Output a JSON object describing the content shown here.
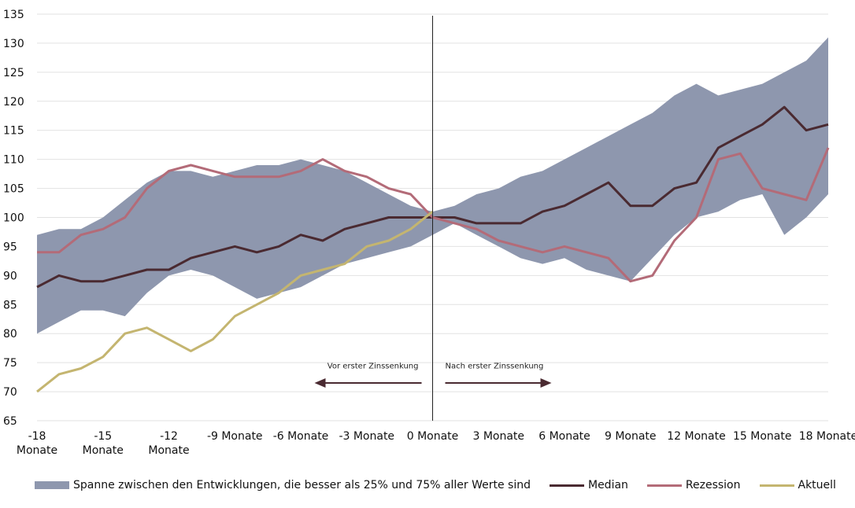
{
  "chart_data": {
    "type": "line",
    "title": "",
    "xlabel": "",
    "ylabel": "",
    "ylim": [
      65,
      135
    ],
    "yticks": [
      "65",
      "70",
      "75",
      "80",
      "85",
      "90",
      "95",
      "100",
      "105",
      "110",
      "115",
      "120",
      "125",
      "130",
      "135"
    ],
    "xlim": [
      -18,
      18
    ],
    "xticks": [
      {
        "value": -18,
        "lines": [
          "-18",
          "Monate"
        ]
      },
      {
        "value": -15,
        "lines": [
          "-15",
          "Monate"
        ]
      },
      {
        "value": -12,
        "lines": [
          "-12",
          "Monate"
        ]
      },
      {
        "value": -9,
        "lines": [
          "-9 Monate"
        ]
      },
      {
        "value": -6,
        "lines": [
          "-6 Monate"
        ]
      },
      {
        "value": -3,
        "lines": [
          "-3 Monate"
        ]
      },
      {
        "value": 0,
        "lines": [
          "0 Monate"
        ]
      },
      {
        "value": 3,
        "lines": [
          "3 Monate"
        ]
      },
      {
        "value": 6,
        "lines": [
          "6 Monate"
        ]
      },
      {
        "value": 9,
        "lines": [
          "9 Monate"
        ]
      },
      {
        "value": 12,
        "lines": [
          "12 Monate"
        ]
      },
      {
        "value": 15,
        "lines": [
          "15 Monate"
        ]
      },
      {
        "value": 18,
        "lines": [
          "18 Monate"
        ]
      }
    ],
    "grid": "horizontal",
    "legend_position": "bottom",
    "annotations": {
      "before": "Vor erster Zinssenkung",
      "after": "Nach erster Zinssenkung"
    },
    "band": {
      "name": "Spanne zwischen den Entwicklungen, die besser als 25% und 75% aller Werte sind",
      "color": "#8e97ae",
      "x": [
        -18,
        -17,
        -16,
        -15,
        -14,
        -13,
        -12,
        -11,
        -10,
        -9,
        -8,
        -7,
        -6,
        -5,
        -4,
        -3,
        -2,
        -1,
        0,
        1,
        2,
        3,
        4,
        5,
        6,
        7,
        8,
        9,
        10,
        11,
        12,
        13,
        14,
        15,
        16,
        17,
        18
      ],
      "lower": [
        80,
        82,
        84,
        84,
        83,
        87,
        90,
        91,
        90,
        88,
        86,
        87,
        88,
        90,
        92,
        93,
        94,
        95,
        97,
        99,
        97,
        95,
        93,
        92,
        93,
        91,
        90,
        89,
        93,
        97,
        100,
        101,
        103,
        104,
        97,
        100,
        104
      ],
      "upper": [
        97,
        98,
        98,
        100,
        103,
        106,
        108,
        108,
        107,
        108,
        109,
        109,
        110,
        109,
        108,
        106,
        104,
        102,
        101,
        102,
        104,
        105,
        107,
        108,
        110,
        112,
        114,
        116,
        118,
        121,
        123,
        121,
        122,
        123,
        125,
        127,
        131
      ]
    },
    "series": [
      {
        "name": "Median",
        "color": "#4a2a31",
        "x": [
          -18,
          -17,
          -16,
          -15,
          -14,
          -13,
          -12,
          -11,
          -10,
          -9,
          -8,
          -7,
          -6,
          -5,
          -4,
          -3,
          -2,
          -1,
          0,
          1,
          2,
          3,
          4,
          5,
          6,
          7,
          8,
          9,
          10,
          11,
          12,
          13,
          14,
          15,
          16,
          17,
          18
        ],
        "values": [
          88,
          90,
          89,
          89,
          90,
          91,
          91,
          93,
          94,
          95,
          94,
          95,
          97,
          96,
          98,
          99,
          100,
          100,
          100,
          100,
          99,
          99,
          99,
          101,
          102,
          104,
          106,
          102,
          102,
          105,
          106,
          112,
          114,
          116,
          119,
          115,
          116
        ]
      },
      {
        "name": "Rezession",
        "color": "#b36b78",
        "x": [
          -18,
          -17,
          -16,
          -15,
          -14,
          -13,
          -12,
          -11,
          -10,
          -9,
          -8,
          -7,
          -6,
          -5,
          -4,
          -3,
          -2,
          -1,
          0,
          1,
          2,
          3,
          4,
          5,
          6,
          7,
          8,
          9,
          10,
          11,
          12,
          13,
          14,
          15,
          16,
          17,
          18
        ],
        "values": [
          94,
          94,
          97,
          98,
          100,
          105,
          108,
          109,
          108,
          107,
          107,
          107,
          108,
          110,
          108,
          107,
          105,
          104,
          100,
          99,
          98,
          96,
          95,
          94,
          95,
          94,
          93,
          89,
          90,
          96,
          100,
          110,
          111,
          105,
          104,
          103,
          112
        ]
      },
      {
        "name": "Aktuell",
        "color": "#c4b570",
        "x": [
          -18,
          -17,
          -16,
          -15,
          -14,
          -13,
          -12,
          -11,
          -10,
          -9,
          -8,
          -7,
          -6,
          -5,
          -4,
          -3,
          -2,
          -1,
          0
        ],
        "values": [
          70,
          73,
          74,
          76,
          80,
          81,
          79,
          77,
          79,
          83,
          85,
          87,
          90,
          91,
          92,
          95,
          96,
          98,
          101
        ]
      }
    ]
  }
}
